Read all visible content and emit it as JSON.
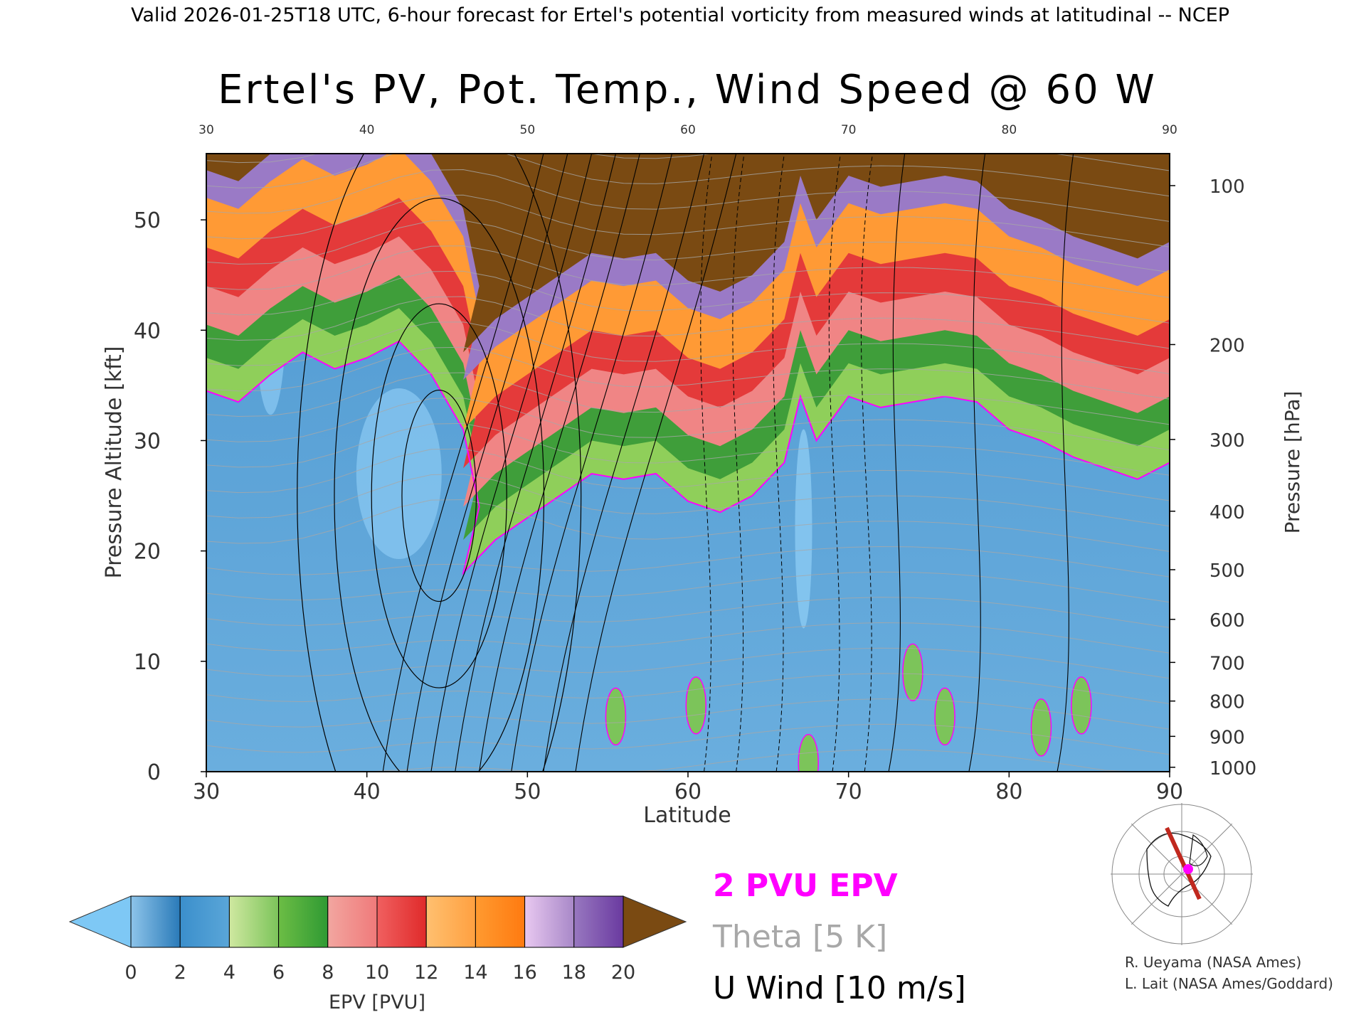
{
  "header": {
    "valid_line": "Valid 2026-01-25T18 UTC, 6-hour forecast for Ertel's potential vorticity from measured winds at latitudinal -- NCEP"
  },
  "chart_data": {
    "type": "heatmap",
    "title": "Ertel's PV, Pot. Temp., Wind Speed @ 60 W",
    "xlabel": "Latitude",
    "ylabel": "Pressure Altitude [kft]",
    "y2label": "Pressure [hPa]",
    "xlim": [
      30,
      90
    ],
    "ylim": [
      0,
      56
    ],
    "x_ticks": [
      30,
      40,
      50,
      60,
      70,
      80,
      90
    ],
    "top_ticks": [
      30,
      40,
      50,
      60,
      70,
      80,
      90
    ],
    "y_ticks": [
      0,
      10,
      20,
      30,
      40,
      50
    ],
    "pressure_ticks": [
      {
        "hpa": 100,
        "kft": 53.1
      },
      {
        "hpa": 200,
        "kft": 38.7
      },
      {
        "hpa": 300,
        "kft": 30.1
      },
      {
        "hpa": 400,
        "kft": 23.6
      },
      {
        "hpa": 500,
        "kft": 18.3
      },
      {
        "hpa": 600,
        "kft": 13.8
      },
      {
        "hpa": 700,
        "kft": 9.9
      },
      {
        "hpa": 800,
        "kft": 6.4
      },
      {
        "hpa": 900,
        "kft": 3.2
      },
      {
        "hpa": 1000,
        "kft": 0.4
      }
    ],
    "colorbar": {
      "label": "EPV [PVU]",
      "ticks": [
        0,
        2,
        4,
        6,
        8,
        10,
        12,
        14,
        16,
        18,
        20
      ],
      "under_color": "#7ec8f5",
      "over_color": "#7a4a12",
      "bins": [
        [
          "#8dc4ea",
          "#2a7ab8"
        ],
        [
          "#3b8fcc",
          "#5aa6d8"
        ],
        [
          "#cfe8a0",
          "#7cc45a"
        ],
        [
          "#6cbd45",
          "#2f9a33"
        ],
        [
          "#f2a6a0",
          "#f07a7a"
        ],
        [
          "#f06060",
          "#e02a2a"
        ],
        [
          "#ffc070",
          "#ffa040"
        ],
        [
          "#ff9a30",
          "#ff7a10"
        ],
        [
          "#e8c8f0",
          "#a888c8"
        ],
        [
          "#9878c0",
          "#6a3aa0"
        ],
        [
          "#fff3a0",
          "#e8c070"
        ]
      ]
    },
    "legend": {
      "items": [
        {
          "label": "2 PVU EPV",
          "color": "#ff00ff"
        },
        {
          "label": "Theta [5 K]",
          "color": "#a8a8a8"
        },
        {
          "label": "U Wind [10 m/s]",
          "color": "#000000"
        }
      ]
    },
    "inset_map": {
      "description_marker_color": "#ff00ff",
      "line_color": "#c0281e"
    },
    "credits": [
      "R. Ueyama (NASA Ames)",
      "L. Lait (NASA Ames/Goddard)"
    ],
    "fields": {
      "tropopause_2pvu_kft": [
        [
          30,
          34.5
        ],
        [
          32,
          33.5
        ],
        [
          34,
          36
        ],
        [
          36,
          38
        ],
        [
          38,
          36.5
        ],
        [
          40,
          37.5
        ],
        [
          42,
          39
        ],
        [
          44,
          36
        ],
        [
          46,
          31
        ],
        [
          47,
          24
        ],
        [
          46,
          18
        ],
        [
          48,
          21
        ],
        [
          50,
          23
        ],
        [
          52,
          25
        ],
        [
          54,
          27
        ],
        [
          56,
          26.5
        ],
        [
          58,
          27
        ],
        [
          60,
          24.5
        ],
        [
          62,
          23.5
        ],
        [
          64,
          25
        ],
        [
          66,
          28
        ],
        [
          67,
          34
        ],
        [
          68,
          30
        ],
        [
          70,
          34
        ],
        [
          72,
          33
        ],
        [
          74,
          33.5
        ],
        [
          76,
          34
        ],
        [
          78,
          33.5
        ],
        [
          80,
          31
        ],
        [
          82,
          30
        ],
        [
          84,
          28.5
        ],
        [
          86,
          27.5
        ],
        [
          88,
          26.5
        ],
        [
          90,
          28
        ]
      ],
      "u_wind_contours_ms": [
        0,
        10,
        20,
        30,
        40,
        50,
        60,
        70,
        80,
        90
      ]
    }
  }
}
